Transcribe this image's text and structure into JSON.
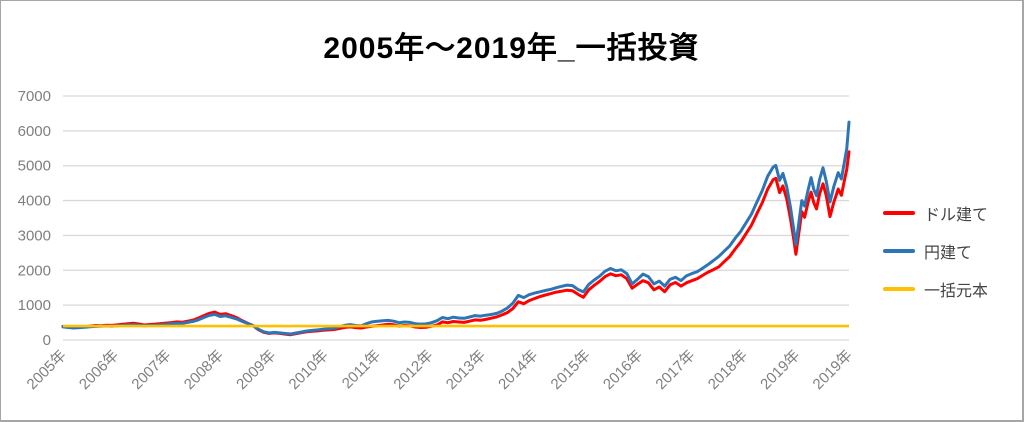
{
  "page": {
    "title": "2005年～2019年_一括投資"
  },
  "colors": {
    "usd_line": "#FF0000",
    "jpy_line": "#2E75B6",
    "principal_line": "#FFC000",
    "gridline": "#D9D9D9",
    "axis_label": "#7F7F7F",
    "title_text": "#000000",
    "legend_text": "#444444",
    "chart_border": "#A6A6A6"
  },
  "chart_data": {
    "type": "line",
    "title": "2005年～2019年_一括投資",
    "xlabel": "",
    "ylabel": "",
    "ylim": [
      0,
      7000
    ],
    "xlim": [
      2005.0,
      2019.5
    ],
    "y_ticks": [
      0,
      1000,
      2000,
      3000,
      4000,
      5000,
      6000,
      7000
    ],
    "x_tick_labels": [
      "2005年",
      "2006年",
      "2007年",
      "2008年",
      "2009年",
      "2010年",
      "2011年",
      "2012年",
      "2013年",
      "2014年",
      "2015年",
      "2016年",
      "2017年",
      "2018年",
      "2019年",
      "2019年"
    ],
    "grid": "horizontal-only",
    "legend_position": "right",
    "series": [
      {
        "name": "ドル建て",
        "color": "#FF0000"
      },
      {
        "name": "円建て",
        "color": "#2E75B6"
      },
      {
        "name": "一括元本",
        "color": "#FFC000",
        "constant_value": 400
      }
    ],
    "columns": [
      "year",
      "ドル建て",
      "円建て"
    ],
    "points": [
      [
        2005.0,
        390,
        375
      ],
      [
        2005.1,
        375,
        360
      ],
      [
        2005.2,
        365,
        345
      ],
      [
        2005.3,
        385,
        355
      ],
      [
        2005.4,
        380,
        365
      ],
      [
        2005.5,
        400,
        380
      ],
      [
        2005.6,
        415,
        390
      ],
      [
        2005.7,
        408,
        398
      ],
      [
        2005.8,
        425,
        405
      ],
      [
        2005.9,
        418,
        400
      ],
      [
        2006.0,
        432,
        408
      ],
      [
        2006.1,
        450,
        420
      ],
      [
        2006.2,
        465,
        432
      ],
      [
        2006.3,
        478,
        440
      ],
      [
        2006.4,
        460,
        430
      ],
      [
        2006.5,
        430,
        405
      ],
      [
        2006.6,
        445,
        418
      ],
      [
        2006.7,
        455,
        425
      ],
      [
        2006.8,
        470,
        440
      ],
      [
        2006.9,
        485,
        450
      ],
      [
        2007.0,
        500,
        465
      ],
      [
        2007.1,
        520,
        480
      ],
      [
        2007.2,
        510,
        475
      ],
      [
        2007.3,
        540,
        505
      ],
      [
        2007.4,
        570,
        535
      ],
      [
        2007.5,
        630,
        580
      ],
      [
        2007.6,
        700,
        645
      ],
      [
        2007.7,
        765,
        705
      ],
      [
        2007.8,
        800,
        735
      ],
      [
        2007.9,
        735,
        675
      ],
      [
        2008.0,
        755,
        695
      ],
      [
        2008.1,
        700,
        650
      ],
      [
        2008.2,
        645,
        605
      ],
      [
        2008.3,
        560,
        540
      ],
      [
        2008.4,
        485,
        475
      ],
      [
        2008.5,
        420,
        420
      ],
      [
        2008.6,
        300,
        312
      ],
      [
        2008.7,
        222,
        238
      ],
      [
        2008.8,
        188,
        202
      ],
      [
        2008.9,
        205,
        218
      ],
      [
        2009.0,
        188,
        205
      ],
      [
        2009.1,
        168,
        186
      ],
      [
        2009.2,
        152,
        172
      ],
      [
        2009.3,
        180,
        200
      ],
      [
        2009.4,
        210,
        230
      ],
      [
        2009.5,
        235,
        257
      ],
      [
        2009.6,
        250,
        275
      ],
      [
        2009.7,
        262,
        290
      ],
      [
        2009.8,
        278,
        308
      ],
      [
        2009.9,
        290,
        322
      ],
      [
        2010.0,
        302,
        338
      ],
      [
        2010.1,
        330,
        382
      ],
      [
        2010.2,
        362,
        422
      ],
      [
        2010.3,
        376,
        442
      ],
      [
        2010.4,
        355,
        415
      ],
      [
        2010.5,
        345,
        405
      ],
      [
        2010.6,
        372,
        470
      ],
      [
        2010.7,
        392,
        518
      ],
      [
        2010.8,
        412,
        540
      ],
      [
        2010.9,
        430,
        552
      ],
      [
        2011.0,
        452,
        562
      ],
      [
        2011.1,
        435,
        540
      ],
      [
        2011.2,
        398,
        495
      ],
      [
        2011.3,
        415,
        515
      ],
      [
        2011.4,
        408,
        505
      ],
      [
        2011.5,
        372,
        468
      ],
      [
        2011.6,
        358,
        455
      ],
      [
        2011.7,
        365,
        462
      ],
      [
        2011.8,
        395,
        495
      ],
      [
        2011.9,
        430,
        555
      ],
      [
        2012.0,
        520,
        645
      ],
      [
        2012.1,
        495,
        612
      ],
      [
        2012.2,
        532,
        655
      ],
      [
        2012.3,
        515,
        632
      ],
      [
        2012.4,
        505,
        622
      ],
      [
        2012.5,
        540,
        660
      ],
      [
        2012.6,
        578,
        700
      ],
      [
        2012.7,
        565,
        685
      ],
      [
        2012.8,
        592,
        712
      ],
      [
        2012.9,
        625,
        732
      ],
      [
        2013.0,
        662,
        762
      ],
      [
        2013.1,
        720,
        830
      ],
      [
        2013.2,
        790,
        920
      ],
      [
        2013.3,
        905,
        1060
      ],
      [
        2013.4,
        1095,
        1280
      ],
      [
        2013.5,
        1040,
        1215
      ],
      [
        2013.6,
        1130,
        1300
      ],
      [
        2013.7,
        1190,
        1345
      ],
      [
        2013.8,
        1245,
        1382
      ],
      [
        2013.9,
        1290,
        1420
      ],
      [
        2014.0,
        1330,
        1455
      ],
      [
        2014.1,
        1375,
        1500
      ],
      [
        2014.2,
        1400,
        1540
      ],
      [
        2014.3,
        1430,
        1575
      ],
      [
        2014.4,
        1415,
        1560
      ],
      [
        2014.5,
        1310,
        1450
      ],
      [
        2014.6,
        1225,
        1380
      ],
      [
        2014.7,
        1440,
        1595
      ],
      [
        2014.8,
        1570,
        1720
      ],
      [
        2014.9,
        1680,
        1830
      ],
      [
        2015.0,
        1820,
        1975
      ],
      [
        2015.1,
        1900,
        2050
      ],
      [
        2015.2,
        1845,
        1985
      ],
      [
        2015.3,
        1870,
        2015
      ],
      [
        2015.4,
        1760,
        1905
      ],
      [
        2015.5,
        1485,
        1610
      ],
      [
        2015.6,
        1600,
        1745
      ],
      [
        2015.7,
        1705,
        1890
      ],
      [
        2015.8,
        1640,
        1820
      ],
      [
        2015.9,
        1440,
        1610
      ],
      [
        2016.0,
        1520,
        1690
      ],
      [
        2016.1,
        1385,
        1545
      ],
      [
        2016.2,
        1585,
        1740
      ],
      [
        2016.3,
        1650,
        1800
      ],
      [
        2016.4,
        1545,
        1705
      ],
      [
        2016.5,
        1640,
        1840
      ],
      [
        2016.6,
        1700,
        1905
      ],
      [
        2016.7,
        1758,
        1960
      ],
      [
        2016.8,
        1852,
        2060
      ],
      [
        2016.9,
        1948,
        2165
      ],
      [
        2017.0,
        2020,
        2280
      ],
      [
        2017.1,
        2100,
        2400
      ],
      [
        2017.2,
        2250,
        2550
      ],
      [
        2017.3,
        2395,
        2700
      ],
      [
        2017.4,
        2610,
        2920
      ],
      [
        2017.5,
        2805,
        3110
      ],
      [
        2017.6,
        3050,
        3360
      ],
      [
        2017.7,
        3290,
        3610
      ],
      [
        2017.8,
        3620,
        3950
      ],
      [
        2017.9,
        3940,
        4290
      ],
      [
        2018.0,
        4330,
        4700
      ],
      [
        2018.1,
        4600,
        4960
      ],
      [
        2018.15,
        4640,
        5010
      ],
      [
        2018.22,
        4230,
        4580
      ],
      [
        2018.28,
        4420,
        4780
      ],
      [
        2018.35,
        4050,
        4400
      ],
      [
        2018.42,
        3480,
        3800
      ],
      [
        2018.48,
        2900,
        3180
      ],
      [
        2018.52,
        2460,
        2730
      ],
      [
        2018.58,
        3120,
        3420
      ],
      [
        2018.63,
        3680,
        4000
      ],
      [
        2018.68,
        3520,
        3840
      ],
      [
        2018.75,
        3980,
        4330
      ],
      [
        2018.8,
        4240,
        4660
      ],
      [
        2018.85,
        3940,
        4320
      ],
      [
        2018.9,
        3760,
        4140
      ],
      [
        2018.96,
        4200,
        4620
      ],
      [
        2019.02,
        4480,
        4940
      ],
      [
        2019.08,
        4150,
        4560
      ],
      [
        2019.15,
        3540,
        3960
      ],
      [
        2019.22,
        3950,
        4400
      ],
      [
        2019.3,
        4330,
        4800
      ],
      [
        2019.36,
        4150,
        4620
      ],
      [
        2019.42,
        4620,
        5150
      ],
      [
        2019.46,
        4900,
        5500
      ],
      [
        2019.5,
        5400,
        6250
      ]
    ]
  }
}
